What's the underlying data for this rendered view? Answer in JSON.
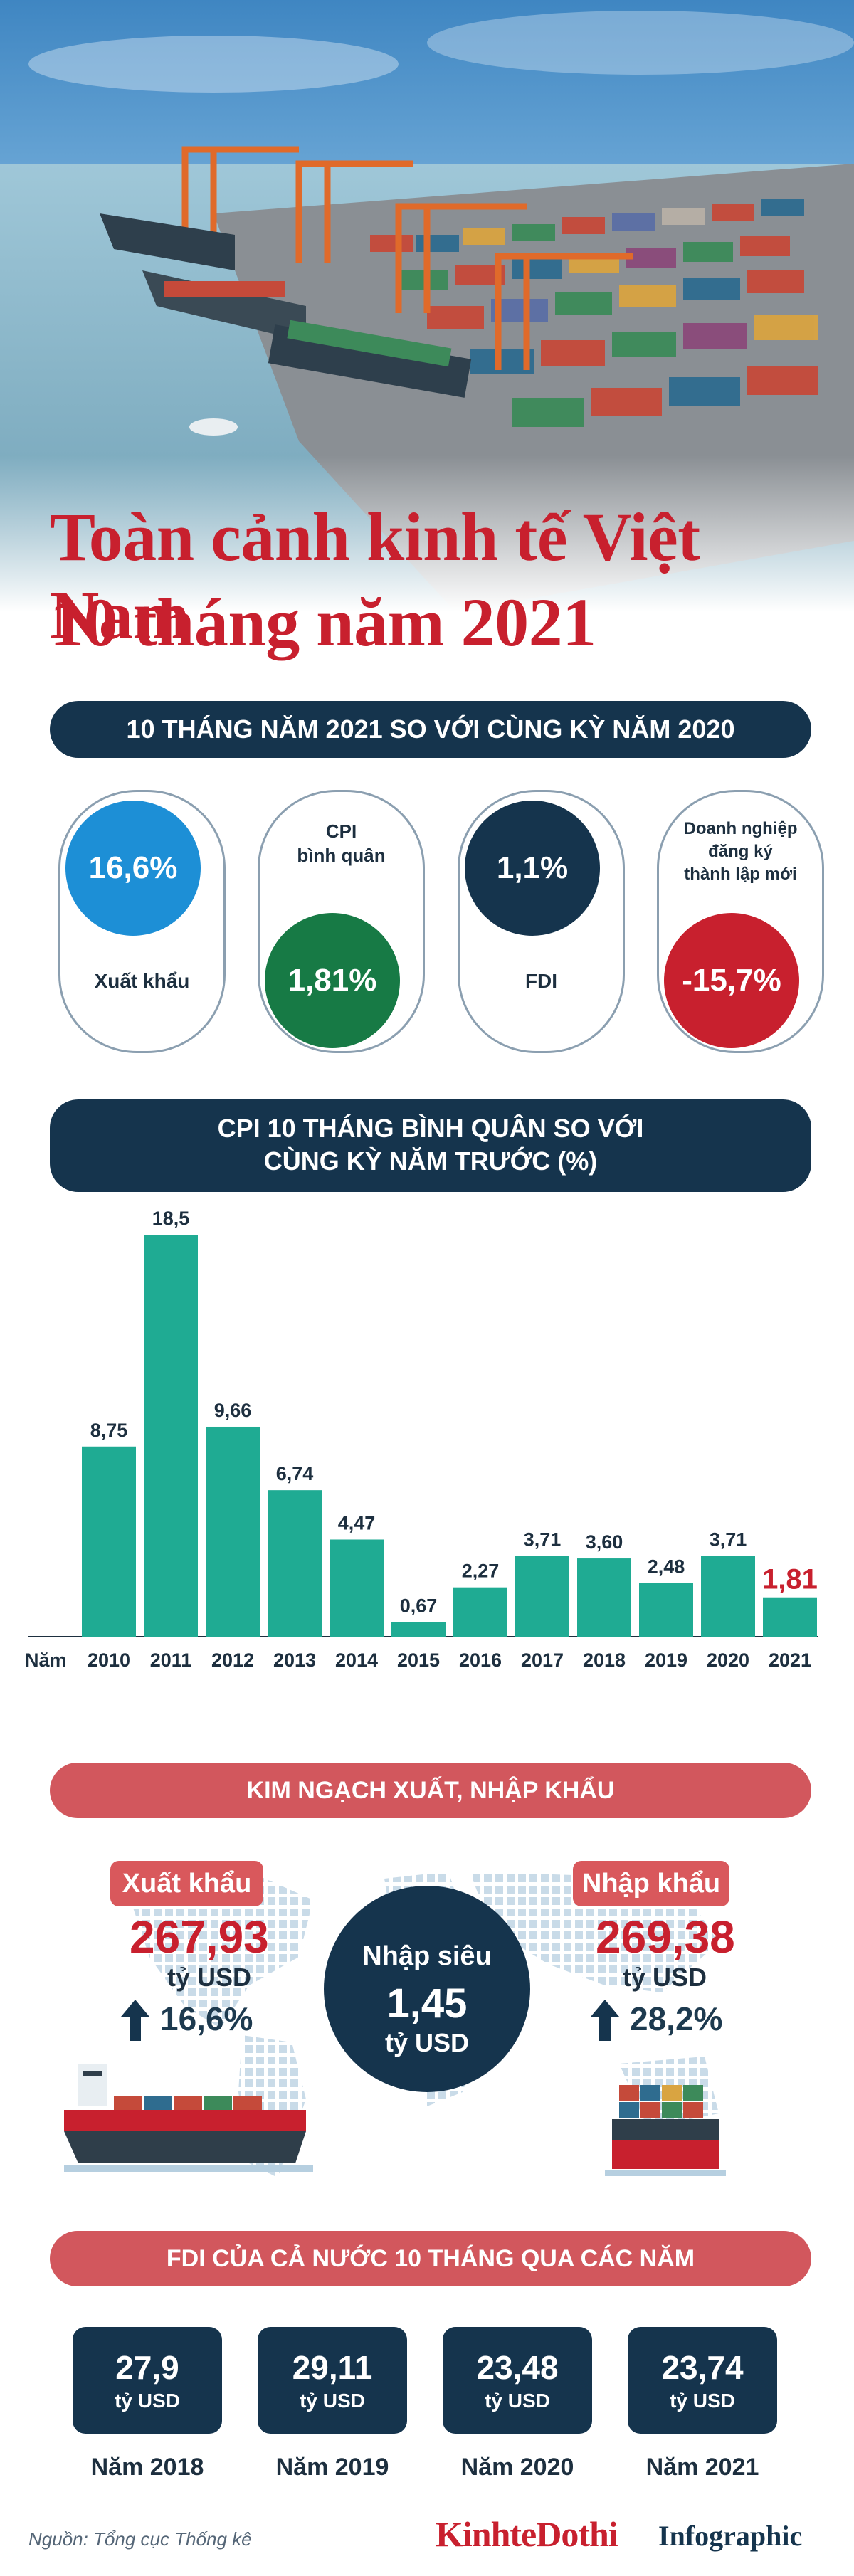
{
  "title": {
    "line1": "Toàn cảnh kinh tế Việt Nam",
    "line2": "10 tháng năm 2021"
  },
  "summary": {
    "heading": "10 THÁNG NĂM 2021 SO VỚI CÙNG KỲ NĂM 2020",
    "items": [
      {
        "value": "16,6%",
        "label": "Xuất khẩu",
        "color": "#1d8fd6"
      },
      {
        "value": "1,81%",
        "label_line1": "CPI",
        "label_line2": "bình quân",
        "color": "#177a45"
      },
      {
        "value": "1,1%",
        "label": "FDI",
        "color": "#15344d"
      },
      {
        "value": "-15,7%",
        "label_line1": "Doanh nghiệp",
        "label_line2": "đăng ký",
        "label_line3": "thành lập mới",
        "color": "#c8202e"
      }
    ]
  },
  "cpi_section": {
    "heading_line1": "CPI 10 THÁNG BÌNH QUÂN SO VỚI",
    "heading_line2": "CÙNG KỲ NĂM TRƯỚC (%)"
  },
  "chart_data": {
    "type": "bar",
    "categories": [
      "2010",
      "2011",
      "2012",
      "2013",
      "2014",
      "2015",
      "2016",
      "2017",
      "2018",
      "2019",
      "2020",
      "2021"
    ],
    "values": [
      8.75,
      18.5,
      9.66,
      6.74,
      4.47,
      0.67,
      2.27,
      3.71,
      3.6,
      2.48,
      3.71,
      1.81
    ],
    "value_labels": [
      "8,75",
      "18,5",
      "9,66",
      "6,74",
      "4,47",
      "0,67",
      "2,27",
      "3,71",
      "3,60",
      "2,48",
      "3,71",
      "1,81"
    ],
    "xlabel": "Năm",
    "ylim": [
      0,
      18.5
    ],
    "bar_color": "#1fab93",
    "highlight_label_color": "#c8202e",
    "highlight_index": 11
  },
  "trade": {
    "heading": "KIM NGẠCH XUẤT, NHẬP KHẨU",
    "export": {
      "label": "Xuất khẩu",
      "value": "267,93",
      "unit": "tỷ USD",
      "growth": "16,6%"
    },
    "import": {
      "label": "Nhập khẩu",
      "value": "269,38",
      "unit": "tỷ USD",
      "growth": "28,2%"
    },
    "deficit": {
      "label": "Nhập siêu",
      "value": "1,45",
      "unit": "tỷ USD"
    }
  },
  "fdi": {
    "heading": "FDI CỦA CẢ NƯỚC 10 THÁNG QUA CÁC NĂM",
    "items": [
      {
        "value": "27,9",
        "unit": "tỷ USD",
        "year": "Năm 2018"
      },
      {
        "value": "29,11",
        "unit": "tỷ USD",
        "year": "Năm 2019"
      },
      {
        "value": "23,48",
        "unit": "tỷ USD",
        "year": "Năm 2020"
      },
      {
        "value": "23,74",
        "unit": "tỷ USD",
        "year": "Năm 2021"
      }
    ]
  },
  "footer": {
    "source": "Nguồn: Tổng cục Thống kê",
    "brand": "KinhteDothi",
    "brand_suffix": "Infographic"
  }
}
